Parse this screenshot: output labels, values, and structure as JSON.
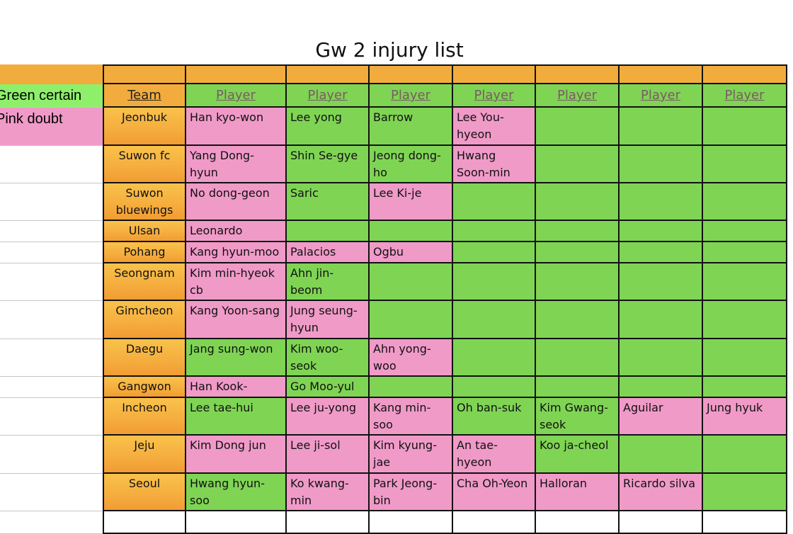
{
  "title": "Gw 2 injury list",
  "legend": [
    {
      "label": "Green certain",
      "color": "#8ef06a"
    },
    {
      "label": "Pink doubt",
      "color": "#f09ac8"
    }
  ],
  "headers": {
    "team": "Team",
    "player": "Player"
  },
  "status_colors": {
    "certain": "#7fd454",
    "doubt": "#f09ac8"
  },
  "rows": [
    {
      "team": "Jeonbuk",
      "players": [
        {
          "name": "Han kyo-won",
          "status": "doubt"
        },
        {
          "name": "Lee yong",
          "status": "certain"
        },
        {
          "name": "Barrow",
          "status": "certain"
        },
        {
          "name": "Lee You-hyeon",
          "status": "doubt"
        },
        {
          "name": "",
          "status": "certain"
        },
        {
          "name": "",
          "status": "certain"
        },
        {
          "name": "",
          "status": "certain"
        }
      ]
    },
    {
      "team": "Suwon fc",
      "players": [
        {
          "name": "Yang Dong-hyun",
          "status": "doubt"
        },
        {
          "name": "Shin Se-gye",
          "status": "certain"
        },
        {
          "name": "Jeong dong-ho",
          "status": "certain"
        },
        {
          "name": "Hwang Soon-min",
          "status": "doubt"
        },
        {
          "name": "",
          "status": "certain"
        },
        {
          "name": "",
          "status": "certain"
        },
        {
          "name": "",
          "status": "certain"
        }
      ]
    },
    {
      "team": "Suwon bluewings",
      "players": [
        {
          "name": "No dong-geon",
          "status": "doubt"
        },
        {
          "name": "Saric",
          "status": "certain"
        },
        {
          "name": "Lee Ki-je",
          "status": "doubt"
        },
        {
          "name": "",
          "status": "certain"
        },
        {
          "name": "",
          "status": "certain"
        },
        {
          "name": "",
          "status": "certain"
        },
        {
          "name": "",
          "status": "certain"
        }
      ]
    },
    {
      "team": "Ulsan",
      "players": [
        {
          "name": "Leonardo",
          "status": "doubt"
        },
        {
          "name": "",
          "status": "certain"
        },
        {
          "name": "",
          "status": "certain"
        },
        {
          "name": "",
          "status": "certain"
        },
        {
          "name": "",
          "status": "certain"
        },
        {
          "name": "",
          "status": "certain"
        },
        {
          "name": "",
          "status": "certain"
        }
      ]
    },
    {
      "team": "Pohang",
      "players": [
        {
          "name": "Kang hyun-moo",
          "status": "doubt"
        },
        {
          "name": "Palacios",
          "status": "doubt"
        },
        {
          "name": "Ogbu",
          "status": "doubt"
        },
        {
          "name": "",
          "status": "certain"
        },
        {
          "name": "",
          "status": "certain"
        },
        {
          "name": "",
          "status": "certain"
        },
        {
          "name": "",
          "status": "certain"
        }
      ]
    },
    {
      "team": "Seongnam",
      "players": [
        {
          "name": "Kim min-hyeok cb",
          "status": "doubt"
        },
        {
          "name": "Ahn jin-beom",
          "status": "certain"
        },
        {
          "name": "",
          "status": "certain"
        },
        {
          "name": "",
          "status": "certain"
        },
        {
          "name": "",
          "status": "certain"
        },
        {
          "name": "",
          "status": "certain"
        },
        {
          "name": "",
          "status": "certain"
        }
      ]
    },
    {
      "team": "Gimcheon",
      "players": [
        {
          "name": "Kang Yoon-sang",
          "status": "doubt"
        },
        {
          "name": "Jung seung-hyun",
          "status": "doubt"
        },
        {
          "name": "",
          "status": "certain"
        },
        {
          "name": "",
          "status": "certain"
        },
        {
          "name": "",
          "status": "certain"
        },
        {
          "name": "",
          "status": "certain"
        },
        {
          "name": "",
          "status": "certain"
        }
      ]
    },
    {
      "team": "Daegu",
      "players": [
        {
          "name": "Jang sung-won",
          "status": "certain"
        },
        {
          "name": "Kim woo-seok",
          "status": "certain"
        },
        {
          "name": "Ahn yong-woo",
          "status": "doubt"
        },
        {
          "name": "",
          "status": "certain"
        },
        {
          "name": "",
          "status": "certain"
        },
        {
          "name": "",
          "status": "certain"
        },
        {
          "name": "",
          "status": "certain"
        }
      ]
    },
    {
      "team": "Gangwon",
      "players": [
        {
          "name": "Han Kook-young",
          "status": "doubt"
        },
        {
          "name": "Go Moo-yul",
          "status": "certain"
        },
        {
          "name": "",
          "status": "certain"
        },
        {
          "name": "",
          "status": "certain"
        },
        {
          "name": "",
          "status": "certain"
        },
        {
          "name": "",
          "status": "certain"
        },
        {
          "name": "",
          "status": "certain"
        }
      ]
    },
    {
      "team": "Incheon",
      "players": [
        {
          "name": "Lee tae-hui",
          "status": "certain"
        },
        {
          "name": "Lee ju-yong",
          "status": "doubt"
        },
        {
          "name": "Kang min-soo",
          "status": "doubt"
        },
        {
          "name": "Oh ban-suk",
          "status": "certain"
        },
        {
          "name": "Kim Gwang-seok",
          "status": "certain"
        },
        {
          "name": "Aguilar",
          "status": "doubt"
        },
        {
          "name": "Jung hyuk",
          "status": "doubt"
        }
      ]
    },
    {
      "team": "Jeju",
      "players": [
        {
          "name": "Kim Dong jun",
          "status": "doubt"
        },
        {
          "name": "Lee ji-sol",
          "status": "doubt"
        },
        {
          "name": "Kim kyung-jae",
          "status": "doubt"
        },
        {
          "name": "An tae-hyeon",
          "status": "doubt"
        },
        {
          "name": "Koo ja-cheol",
          "status": "certain"
        },
        {
          "name": "",
          "status": "certain"
        },
        {
          "name": "",
          "status": "certain"
        }
      ]
    },
    {
      "team": "Seoul",
      "players": [
        {
          "name": "Hwang hyun-soo",
          "status": "certain"
        },
        {
          "name": "Ko kwang-min",
          "status": "doubt"
        },
        {
          "name": "Park Jeong-bin",
          "status": "doubt"
        },
        {
          "name": "Cha Oh-Yeon",
          "status": "doubt"
        },
        {
          "name": "Halloran",
          "status": "doubt"
        },
        {
          "name": "Ricardo silva",
          "status": "doubt"
        },
        {
          "name": "",
          "status": "certain"
        }
      ]
    }
  ]
}
